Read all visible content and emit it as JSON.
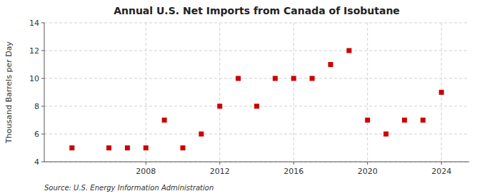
{
  "chart_data": {
    "type": "scatter",
    "title": "Annual U.S. Net Imports from Canada of Isobutane",
    "ylabel": "Thousand Barrels per Day",
    "annotations": [
      "Source: U.S. Energy Information Administration"
    ],
    "x": [
      2004,
      2006,
      2007,
      2008,
      2009,
      2010,
      2011,
      2012,
      2013,
      2014,
      2015,
      2016,
      2017,
      2018,
      2019,
      2020,
      2021,
      2022,
      2023,
      2024
    ],
    "values": [
      5,
      5,
      5,
      5,
      7,
      5,
      6,
      8,
      10,
      8,
      10,
      10,
      10,
      11,
      12,
      7,
      6,
      7,
      7,
      9
    ],
    "color": "#cc0000",
    "marker": "square",
    "xlim": [
      2002.5,
      2025.5
    ],
    "xticks": [
      2008,
      2012,
      2016,
      2020,
      2024
    ],
    "ylim": [
      4,
      14
    ],
    "yticks": [
      4,
      6,
      8,
      10,
      12,
      14
    ],
    "grid": true
  }
}
